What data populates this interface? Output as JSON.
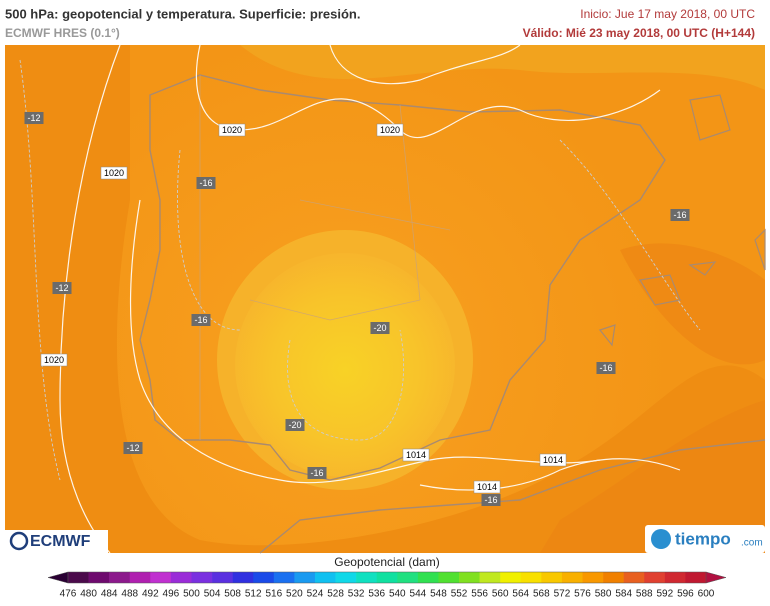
{
  "header": {
    "title": "500 hPa: geopotencial y temperatura. Superficie: presión.",
    "model": "ECMWF HRES (0.1°)",
    "init": "Inicio: Jue 17 may 2018, 00 UTC",
    "valid": "Válido: Mié 23 may 2018, 00 UTC (H+144)"
  },
  "map": {
    "labels": [
      "-12",
      "1020",
      "-16",
      "1020",
      "1020",
      "-12",
      "-16",
      "-20",
      "1020",
      "-16",
      "-16",
      "-12",
      "-20",
      "1014",
      "1014",
      "-16",
      "1014",
      "-16"
    ]
  },
  "logos": {
    "ecmwf": "ECMWF",
    "tiempo": "tiempo",
    "tiempo_domain": ".com"
  },
  "colorbar": {
    "title": "Geopotencial (dam)",
    "ticks": [
      476,
      480,
      484,
      488,
      492,
      496,
      500,
      504,
      508,
      512,
      516,
      520,
      524,
      528,
      532,
      536,
      540,
      544,
      548,
      552,
      556,
      560,
      564,
      568,
      572,
      576,
      580,
      584,
      588,
      592,
      596,
      600
    ],
    "colors": [
      "#2a0033",
      "#4b0a4b",
      "#6e0a6e",
      "#8c1a8c",
      "#b020b0",
      "#c030d0",
      "#9a2cd8",
      "#7a30e0",
      "#5a30e0",
      "#3030e0",
      "#1a4ae8",
      "#1a70f0",
      "#1a9af0",
      "#10c0f0",
      "#10d8e8",
      "#10e0c0",
      "#10e0a0",
      "#20e080",
      "#30e050",
      "#50e030",
      "#80e020",
      "#c0e820",
      "#f0f000",
      "#f8e000",
      "#f8c800",
      "#f8b000",
      "#f89800",
      "#f08000",
      "#e86020",
      "#e04030",
      "#d02830",
      "#c01830",
      "#b01040"
    ]
  }
}
